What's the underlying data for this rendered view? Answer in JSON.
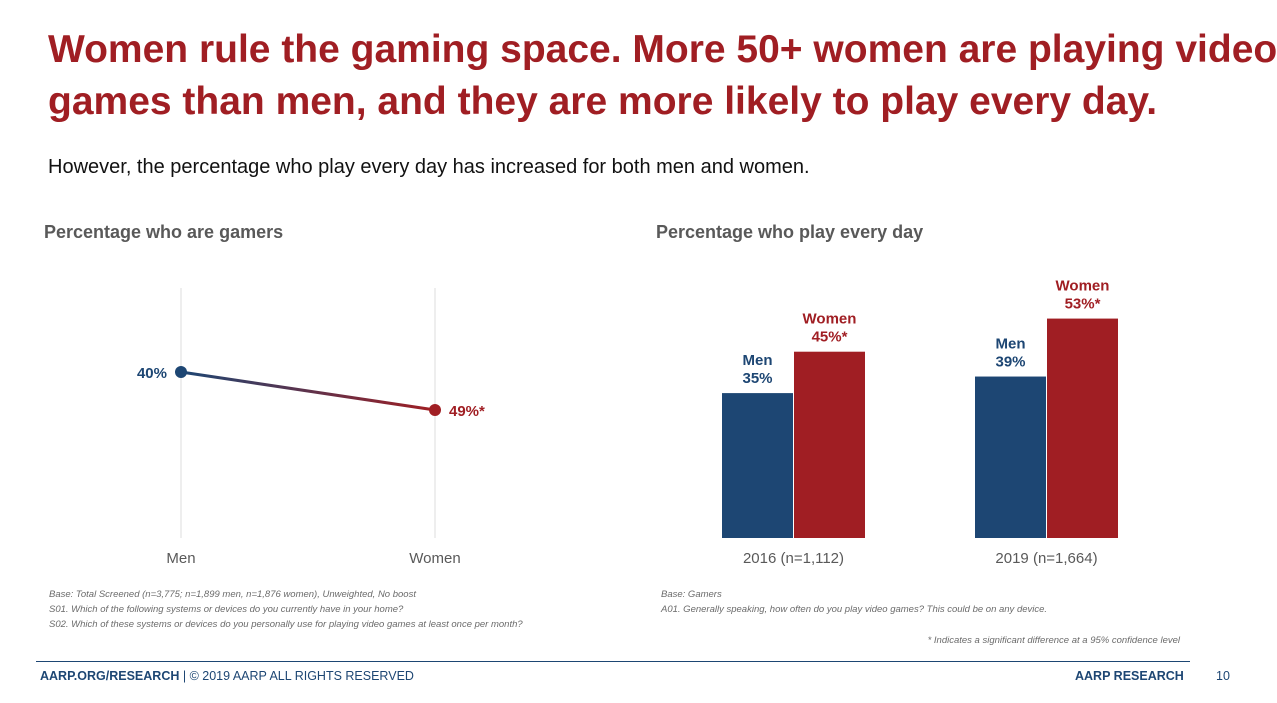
{
  "title_line1": "Women rule the gaming space. More 50+ women are playing video",
  "title_line2": "games than men, and they are more likely to play every day.",
  "subtitle": "However, the percentage who play every day has increased for both men and women.",
  "chart_data": [
    {
      "type": "line",
      "title": "Percentage who are gamers",
      "categories": [
        "Men",
        "Women"
      ],
      "values": [
        40,
        49
      ],
      "data_labels": [
        "40%",
        "49%*"
      ],
      "colors": [
        "#1d4673",
        "#a01e23"
      ]
    },
    {
      "type": "bar",
      "title": "Percentage who play every day",
      "categories": [
        "2016 (n=1,112)",
        "2019 (n=1,664)"
      ],
      "series": [
        {
          "name": "Men",
          "values": [
            35,
            39
          ],
          "labels": [
            "35%",
            "39%"
          ],
          "color": "#1d4673"
        },
        {
          "name": "Women",
          "values": [
            45,
            53
          ],
          "labels": [
            "45%*",
            "53%*"
          ],
          "color": "#a01e23"
        }
      ]
    }
  ],
  "notes_left": [
    "Base: Total Screened (n=3,775; n=1,899 men, n=1,876 women), Unweighted, No boost",
    "S01. Which of the following systems or devices do you currently have in your home?",
    "S02. Which of these systems or devices do you personally use for playing video games at least once per month?"
  ],
  "notes_right": [
    "Base: Gamers",
    "A01. Generally speaking, how often do you play video games?  This could be on any device."
  ],
  "significance_note": "* Indicates a significant difference at a 95% confidence level",
  "footer": {
    "site": "AARP.ORG/RESEARCH",
    "rights": " | © 2019 AARP ALL RIGHTS RESERVED",
    "brand": "AARP RESEARCH",
    "page": "10"
  }
}
